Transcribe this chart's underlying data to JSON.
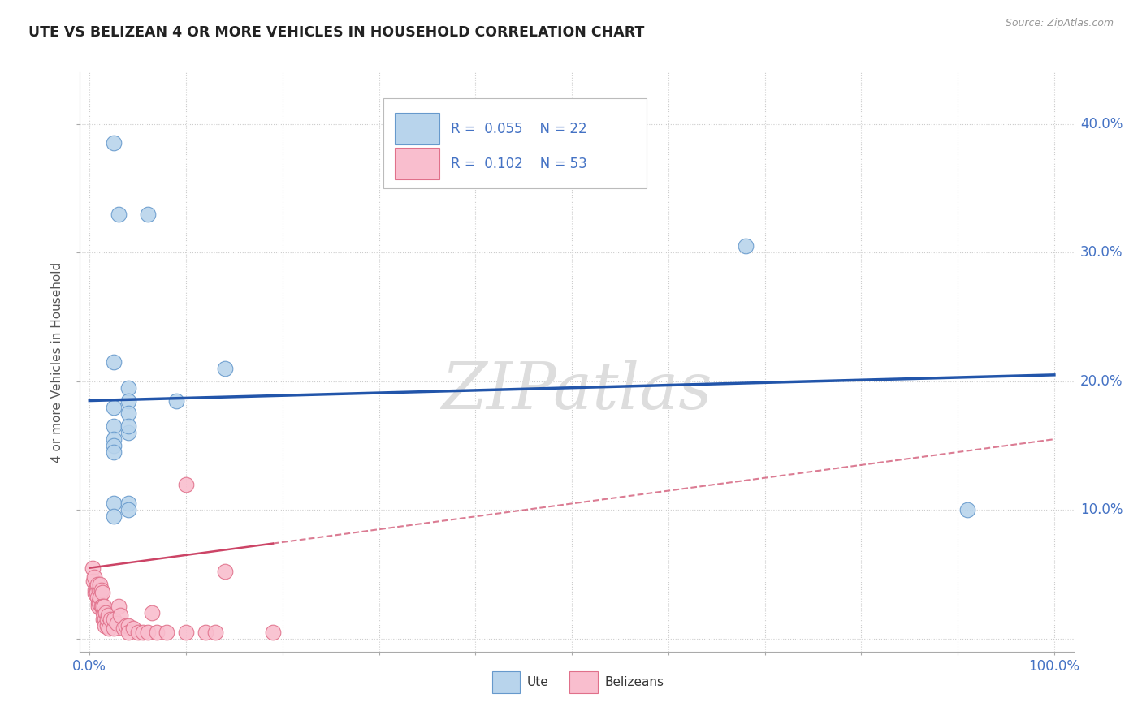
{
  "title": "UTE VS BELIZEAN 4 OR MORE VEHICLES IN HOUSEHOLD CORRELATION CHART",
  "source": "Source: ZipAtlas.com",
  "ylabel_label": "4 or more Vehicles in Household",
  "xlim": [
    -0.01,
    1.02
  ],
  "ylim": [
    -0.01,
    0.44
  ],
  "xticks": [
    0.0,
    0.1,
    0.2,
    0.3,
    0.4,
    0.5,
    0.6,
    0.7,
    0.8,
    0.9,
    1.0
  ],
  "xticklabels": [
    "0.0%",
    "",
    "",
    "",
    "",
    "",
    "",
    "",
    "",
    "",
    "100.0%"
  ],
  "yticks": [
    0.0,
    0.1,
    0.2,
    0.3,
    0.4
  ],
  "yticklabels": [
    "",
    "10.0%",
    "20.0%",
    "30.0%",
    "40.0%"
  ],
  "legend_R_ute": "0.055",
  "legend_N_ute": "22",
  "legend_R_bel": "0.102",
  "legend_N_bel": "53",
  "ute_color": "#b8d4ec",
  "bel_color": "#f9bece",
  "ute_edge_color": "#6699cc",
  "bel_edge_color": "#e0708a",
  "ute_line_color": "#2255aa",
  "bel_line_color": "#cc4466",
  "grid_color": "#cccccc",
  "bg_color": "#ffffff",
  "watermark": "ZIPatlas",
  "ute_x": [
    0.025,
    0.03,
    0.06,
    0.025,
    0.04,
    0.025,
    0.04,
    0.025,
    0.04,
    0.025,
    0.04,
    0.025,
    0.04,
    0.025,
    0.09,
    0.025,
    0.04,
    0.025,
    0.04,
    0.91,
    0.68,
    0.14
  ],
  "ute_y": [
    0.385,
    0.33,
    0.33,
    0.215,
    0.195,
    0.18,
    0.185,
    0.165,
    0.175,
    0.155,
    0.16,
    0.15,
    0.165,
    0.145,
    0.185,
    0.105,
    0.105,
    0.095,
    0.1,
    0.1,
    0.305,
    0.21
  ],
  "bel_x": [
    0.003,
    0.004,
    0.005,
    0.006,
    0.006,
    0.007,
    0.007,
    0.008,
    0.008,
    0.009,
    0.009,
    0.01,
    0.01,
    0.011,
    0.011,
    0.012,
    0.012,
    0.013,
    0.013,
    0.014,
    0.014,
    0.015,
    0.015,
    0.016,
    0.016,
    0.017,
    0.018,
    0.018,
    0.019,
    0.02,
    0.022,
    0.025,
    0.025,
    0.028,
    0.03,
    0.032,
    0.035,
    0.038,
    0.04,
    0.04,
    0.045,
    0.05,
    0.055,
    0.06,
    0.07,
    0.08,
    0.1,
    0.12,
    0.13,
    0.14,
    0.19,
    0.1,
    0.065
  ],
  "bel_y": [
    0.055,
    0.045,
    0.048,
    0.038,
    0.035,
    0.04,
    0.036,
    0.042,
    0.032,
    0.028,
    0.025,
    0.038,
    0.028,
    0.042,
    0.032,
    0.025,
    0.038,
    0.036,
    0.025,
    0.02,
    0.015,
    0.025,
    0.018,
    0.015,
    0.01,
    0.02,
    0.01,
    0.015,
    0.018,
    0.008,
    0.015,
    0.008,
    0.015,
    0.012,
    0.025,
    0.018,
    0.008,
    0.01,
    0.01,
    0.005,
    0.008,
    0.005,
    0.005,
    0.005,
    0.005,
    0.005,
    0.005,
    0.005,
    0.005,
    0.052,
    0.005,
    0.12,
    0.02
  ],
  "ute_trend_x": [
    0.0,
    1.0
  ],
  "ute_trend_y": [
    0.185,
    0.205
  ],
  "bel_trend_x": [
    0.0,
    1.0
  ],
  "bel_trend_y": [
    0.055,
    0.155
  ]
}
